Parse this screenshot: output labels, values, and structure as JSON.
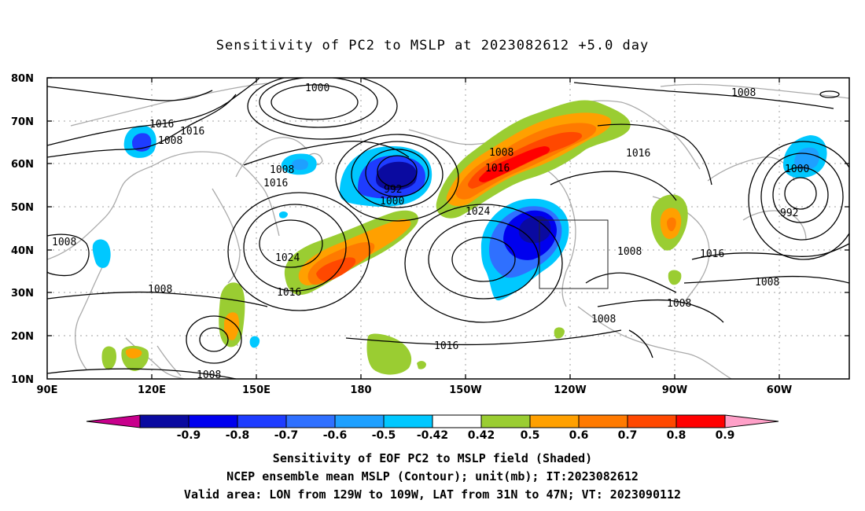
{
  "title": "Sensitivity of PC2 to MSLP at 2023082612 +5.0 day",
  "lat_labels": [
    "80N",
    "70N",
    "60N",
    "50N",
    "40N",
    "30N",
    "20N",
    "10N"
  ],
  "lon_labels": [
    "90E",
    "120E",
    "150E",
    "180",
    "150W",
    "120W",
    "90W",
    "60W"
  ],
  "contour_labels": [
    "1000",
    "1008",
    "1016",
    "1008",
    "1008",
    "1016",
    "992",
    "1000",
    "1008",
    "1016",
    "1024",
    "1016",
    "1016",
    "1024",
    "1008",
    "1008",
    "1016",
    "1000",
    "992",
    "1008",
    "1016",
    "1008",
    "1008",
    "1008",
    "1016",
    "1008"
  ],
  "colorbar": {
    "labels": [
      "-0.9",
      "-0.8",
      "-0.7",
      "-0.6",
      "-0.5",
      "-0.42",
      "0.42",
      "0.5",
      "0.6",
      "0.7",
      "0.8",
      "0.9"
    ],
    "colors": [
      "#0a0aa0",
      "#0000ee",
      "#1e3cff",
      "#2f70ff",
      "#1ea0ff",
      "#00c8ff",
      "#ffffff",
      "#9acd32",
      "#ffa000",
      "#ff7a00",
      "#ff4800",
      "#ff0000"
    ],
    "low_color": "#c8008c",
    "high_color": "#ffa0c8"
  },
  "caption": [
    "Sensitivity of EOF PC2 to MSLP field (Shaded)",
    "NCEP ensemble mean MSLP (Contour); unit(mb); IT:2023082612",
    "Valid area: LON from 129W to 109W, LAT from 31N to 47N; VT: 2023090112"
  ]
}
